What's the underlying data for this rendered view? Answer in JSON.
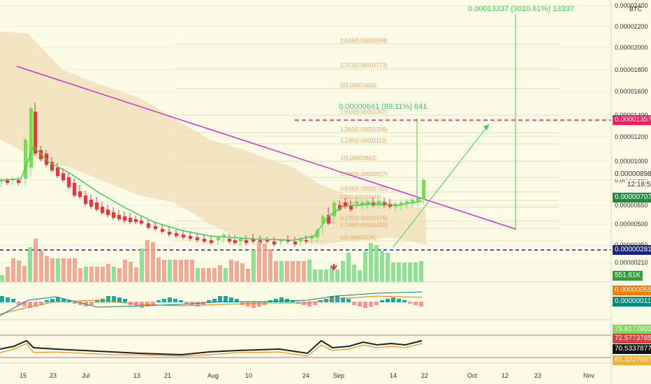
{
  "header": {
    "currency": "BTC"
  },
  "chart_data": {
    "type": "candlestick",
    "x_ticks": [
      "15",
      "23",
      "Jul",
      "13",
      "21",
      "Aug",
      "10",
      "24",
      "Sep",
      "14",
      "22",
      "Oct",
      "12",
      "23",
      "Nov"
    ],
    "y_ticks": [
      "0.00002400",
      "0.00002200",
      "0.00002000",
      "0.00001800",
      "0.00001600",
      "0.00001400",
      "0.00001200",
      "0.00001000",
      "0.00000850",
      "0.00000650",
      "0.00000500",
      "0.00000350",
      "0.00000210"
    ],
    "price_labels": {
      "target": "0.00001357",
      "last": "0.00000898",
      "countdown": "12:18:52",
      "ma": "0.00000707",
      "support": "0.00000281",
      "volume": "551.61K",
      "macd1": "0.00000055",
      "macd2": "0.00000011",
      "rsi1": "75.81728010",
      "rsi2": "72.57737859",
      "rsi3": "70.53378772",
      "rsi4": "61.32276574"
    },
    "fib_levels": [
      {
        "ratio": "2.618",
        "price": "0.00001994"
      },
      {
        "ratio": "2.272",
        "price": "0.00001773"
      },
      {
        "ratio": "2",
        "price": "0.00001600"
      },
      {
        "ratio": "1.618",
        "price": "0.00001357"
      },
      {
        "ratio": "1.382",
        "price": "0.00001206"
      },
      {
        "ratio": "1.236",
        "price": "0.00001113"
      },
      {
        "ratio": "1",
        "price": "0.00000963"
      },
      {
        "ratio": "0.786",
        "price": "0.00000827"
      },
      {
        "ratio": "0.618",
        "price": "0.00000720"
      },
      {
        "ratio": "0.5",
        "price": "0.00000644"
      },
      {
        "ratio": "0.382",
        "price": "0.00000569"
      },
      {
        "ratio": "0.236",
        "price": "0.00000476"
      },
      {
        "ratio": "0.148",
        "price": "0.00000420"
      },
      {
        "ratio": "0",
        "price": "0.00000326"
      }
    ],
    "annotations": {
      "top": "0.00013337 (3010.61%) 13337",
      "mid": "0.00000641 (89.11%) 641"
    },
    "colors": {
      "up": "#7ed957",
      "down": "#e0393e",
      "trendline": "#cc33cc",
      "support": "#1a237e",
      "target": "#e91e63",
      "fib": "#e8a56b",
      "ma": "#3ecf5a"
    }
  }
}
